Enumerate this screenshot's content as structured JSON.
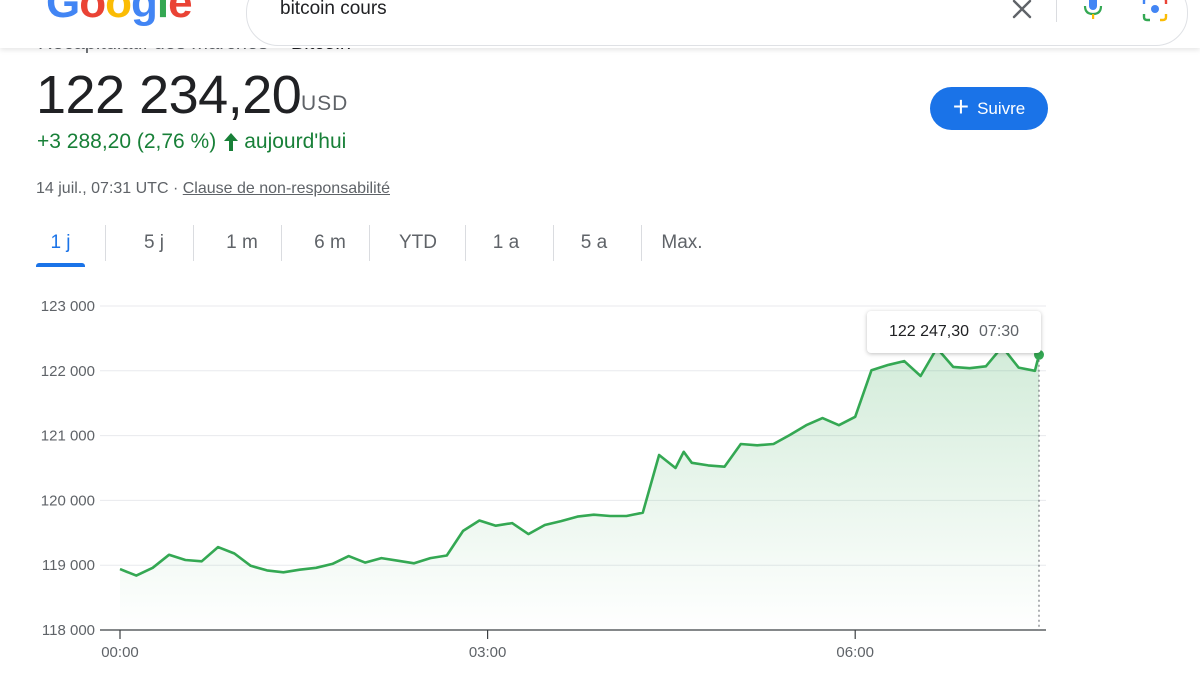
{
  "header": {
    "logo": "Google",
    "search": {
      "value": "bitcoin cours"
    },
    "icons": [
      "close-icon",
      "microphone-icon",
      "lens-icon"
    ]
  },
  "breadcrumb": {
    "parent": "Récapitulatif des marchés",
    "separator": ">",
    "current": "Bitcoin"
  },
  "quote": {
    "price": "122 234,20",
    "currency": "USD",
    "change": "+3 288,20 (2,76 %)",
    "change_period": "aujourd'hui",
    "timestamp": "14 juil., 07:31 UTC",
    "separator": "·",
    "disclaimer": "Clause de non-responsabilité",
    "follow_label": "Suivre"
  },
  "colors": {
    "accent": "#1a73e8",
    "positive": "#188038",
    "line": "#34a853"
  },
  "tabs": [
    {
      "label": "1 j",
      "active": true
    },
    {
      "label": "5 j",
      "active": false
    },
    {
      "label": "1 m",
      "active": false
    },
    {
      "label": "6 m",
      "active": false
    },
    {
      "label": "YTD",
      "active": false
    },
    {
      "label": "1 a",
      "active": false
    },
    {
      "label": "5 a",
      "active": false
    },
    {
      "label": "Max.",
      "active": false
    }
  ],
  "tooltip": {
    "value": "122 247,30",
    "time": "07:30"
  },
  "chart_data": {
    "type": "area",
    "title": "",
    "xlabel": "",
    "ylabel": "",
    "ylim": [
      118000,
      123000
    ],
    "yticks": [
      118000,
      119000,
      120000,
      121000,
      122000,
      123000
    ],
    "ytick_labels": [
      "118 000",
      "119 000",
      "120 000",
      "121 000",
      "122 000",
      "123 000"
    ],
    "xticks": [
      0,
      180,
      360
    ],
    "xtick_labels": [
      "00:00",
      "03:00",
      "06:00"
    ],
    "xlim": [
      0,
      450
    ],
    "grid": true,
    "series": [
      {
        "x": [
          0,
          8,
          16,
          24,
          32,
          40,
          48,
          56,
          64,
          72,
          80,
          88,
          96,
          104,
          112,
          120,
          128,
          136,
          144,
          152,
          160,
          168,
          176,
          184,
          192,
          200,
          208,
          216,
          224,
          232,
          240,
          248,
          256,
          264,
          272,
          276,
          280,
          288,
          296,
          304,
          312,
          320,
          328,
          336,
          344,
          352,
          360,
          368,
          376,
          384,
          392,
          400,
          408,
          416,
          424,
          432,
          440,
          448,
          450
        ],
        "y": [
          118940,
          118840,
          118960,
          119160,
          119080,
          119060,
          119280,
          119180,
          118990,
          118920,
          118890,
          118930,
          118960,
          119020,
          119140,
          119040,
          119110,
          119070,
          119030,
          119110,
          119150,
          119530,
          119690,
          119610,
          119650,
          119480,
          119620,
          119680,
          119750,
          119780,
          119760,
          119760,
          119810,
          120700,
          120500,
          120750,
          120580,
          120540,
          120520,
          120870,
          120850,
          120870,
          121010,
          121160,
          121270,
          121160,
          121290,
          122010,
          122090,
          122150,
          121920,
          122350,
          122060,
          122040,
          122070,
          122370,
          122050,
          122000,
          122247
        ]
      }
    ]
  }
}
